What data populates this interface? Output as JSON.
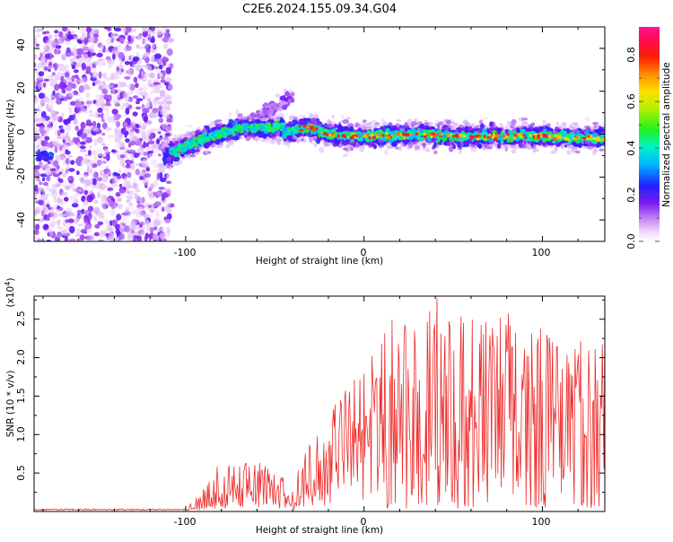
{
  "title": "C2E6.2024.155.09.34.G04",
  "chart_data": [
    {
      "type": "heatmap",
      "xlabel": "Height of straight line (km)",
      "ylabel": "Frequency (Hz)",
      "xlim": [
        -185,
        135
      ],
      "ylim": [
        -50,
        50
      ],
      "x_ticks": [
        -100,
        0,
        100
      ],
      "y_ticks": [
        -40,
        -20,
        0,
        20,
        40
      ],
      "colorbar": {
        "label": "Normalized spectral amplitude",
        "range": [
          0.0,
          0.92
        ],
        "ticks": [
          0.0,
          0.2,
          0.4,
          0.6,
          0.8
        ],
        "colormap": "rainbow (purple-blue-cyan-green-yellow-red-magenta)"
      },
      "features": [
        {
          "name": "scattered noise",
          "x_range": [
            -185,
            -108
          ],
          "freq_range": [
            -50,
            50
          ],
          "amplitude": 0.1
        },
        {
          "name": "narrow line",
          "x_range": [
            -183,
            -175
          ],
          "freq_center": -10,
          "amplitude": 0.3
        },
        {
          "name": "rising trend",
          "points": [
            [
              -112,
              -10
            ],
            [
              -100,
              -6
            ],
            [
              -90,
              -2
            ],
            [
              -80,
              0
            ],
            [
              -70,
              3
            ]
          ]
        },
        {
          "name": "faint branch",
          "points": [
            [
              -70,
              3
            ],
            [
              -55,
              10
            ],
            [
              -40,
              18
            ]
          ]
        },
        {
          "name": "main trace",
          "points": [
            [
              -45,
              0
            ],
            [
              -35,
              3
            ],
            [
              -30,
              3
            ],
            [
              -20,
              0
            ],
            [
              0,
              -1
            ],
            [
              30,
              0
            ],
            [
              60,
              -1
            ],
            [
              100,
              -1
            ],
            [
              135,
              -2
            ]
          ],
          "amplitude_peak": 0.9
        }
      ]
    },
    {
      "type": "line",
      "xlabel": "Height of straight line (km)",
      "ylabel": "SNR (10 * v/v)",
      "y_multiplier": "(x10^4)",
      "xlim": [
        -185,
        135
      ],
      "ylim": [
        0,
        2.8
      ],
      "x_ticks": [
        -100,
        0,
        100
      ],
      "y_ticks": [
        0.5,
        1.0,
        1.5,
        2.0,
        2.5
      ],
      "colors": {
        "series": "#ee2a2a"
      },
      "series": [
        {
          "x": [
            -185,
            -100,
            -90,
            -80,
            -70,
            -60,
            -50,
            -40,
            -30,
            -20,
            -10,
            0,
            10,
            20,
            30,
            40,
            50,
            60,
            70,
            80,
            90,
            100,
            110,
            120,
            130,
            135
          ],
          "y_envelope_max": [
            0.03,
            0.03,
            0.3,
            0.7,
            0.6,
            0.7,
            0.5,
            0.4,
            0.9,
            1.3,
            1.7,
            1.9,
            2.4,
            2.6,
            2.7,
            2.8,
            2.6,
            2.6,
            2.5,
            2.6,
            2.5,
            2.5,
            2.4,
            2.4,
            2.2,
            2.3
          ],
          "y_envelope_mean": [
            0.02,
            0.02,
            0.05,
            0.25,
            0.3,
            0.3,
            0.25,
            0.15,
            0.3,
            0.6,
            0.8,
            1.0,
            1.2,
            1.3,
            1.4,
            1.5,
            1.45,
            1.5,
            1.4,
            1.45,
            1.4,
            1.35,
            1.3,
            1.35,
            1.25,
            1.25
          ]
        }
      ]
    }
  ],
  "labels": {
    "tick_100_neg": "-100",
    "tick_0": "0",
    "tick_100": "100",
    "y_top": [
      "-40",
      "-20",
      "0",
      "20",
      "40"
    ],
    "y_bottom": [
      "0.5",
      "1.0",
      "1.5",
      "2.0",
      "2.5"
    ],
    "cb": [
      "0.0",
      "0.2",
      "0.4",
      "0.6",
      "0.8"
    ],
    "multiplier_base": "(x10",
    "multiplier_exp": "4",
    "multiplier_close": ")"
  }
}
